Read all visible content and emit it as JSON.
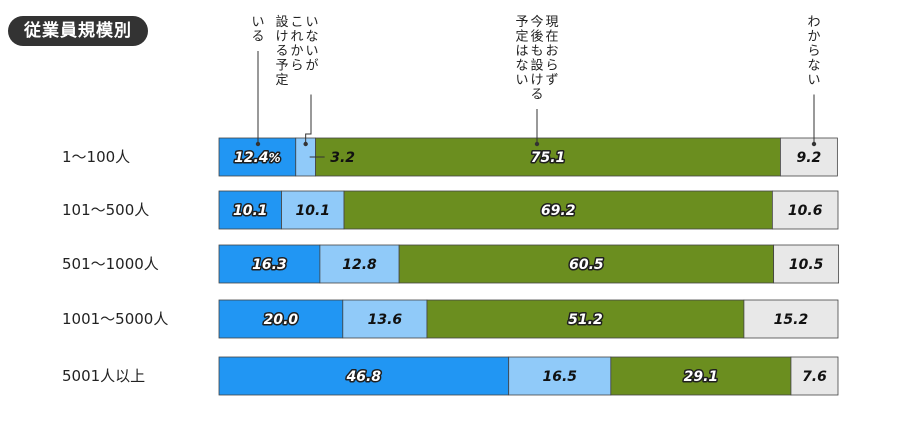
{
  "title": "従業員規模別",
  "chart_data": {
    "type": "bar",
    "stacked": true,
    "orientation": "horizontal",
    "percent_unit": "%",
    "categories": [
      "1～100人",
      "101～500人",
      "501～1000人",
      "1001～5000人",
      "5001人以上"
    ],
    "series": [
      {
        "name": "いる",
        "values": [
          12.4,
          10.1,
          16.3,
          20.0,
          46.8
        ],
        "color": "#2196f3"
      },
      {
        "name": "いないがこれから設ける予定",
        "values": [
          3.2,
          10.1,
          12.8,
          13.6,
          16.5
        ],
        "color": "#90caf9"
      },
      {
        "name": "現在おらず今後も設ける予定はない",
        "values": [
          75.1,
          69.2,
          60.5,
          51.2,
          29.1
        ],
        "color": "#6b8e1f"
      },
      {
        "name": "わからない",
        "values": [
          9.2,
          10.6,
          10.5,
          15.2,
          7.6
        ],
        "color": "#e8e8e8"
      }
    ],
    "value_labels": [
      [
        "12.4",
        "3.2",
        "75.1",
        "9.2"
      ],
      [
        "10.1",
        "10.1",
        "69.2",
        "10.6"
      ],
      [
        "16.3",
        "12.8",
        "60.5",
        "10.5"
      ],
      [
        "20.0",
        "13.6",
        "51.2",
        "15.2"
      ],
      [
        "46.8",
        "16.5",
        "29.1",
        "7.6"
      ]
    ],
    "legend_lines": [
      [
        "いる"
      ],
      [
        "いないが",
        "これから",
        "設ける予定"
      ],
      [
        "現在おらず",
        "今後も設ける",
        "予定はない"
      ],
      [
        "わからない"
      ]
    ],
    "xlim": [
      0,
      100
    ]
  }
}
